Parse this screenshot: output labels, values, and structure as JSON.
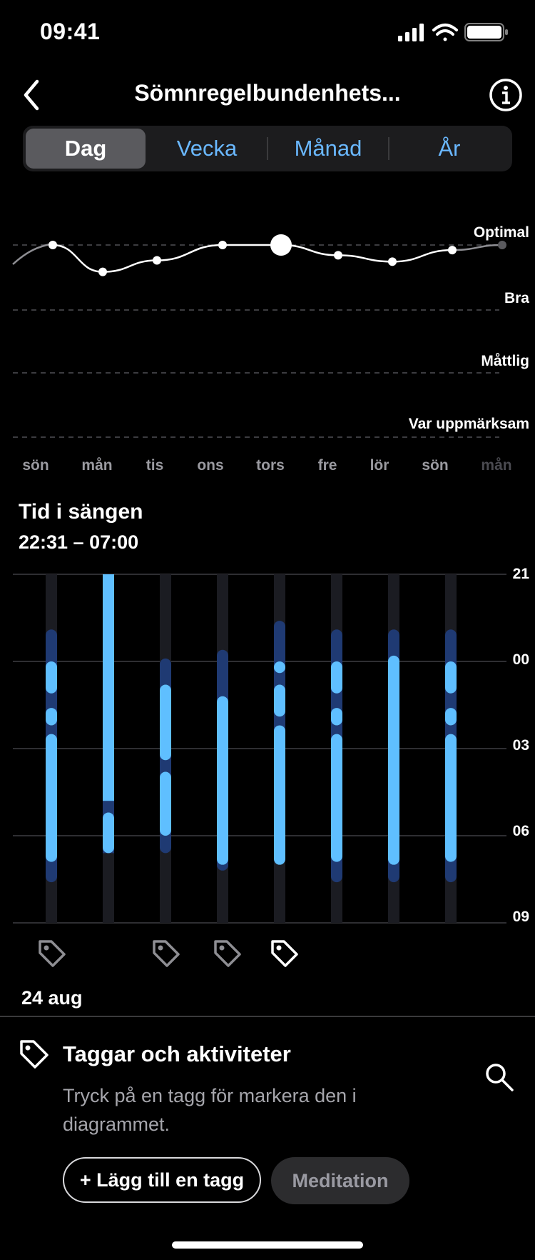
{
  "status_bar": {
    "time": "09:41",
    "icons": [
      "signal-icon",
      "wifi-icon",
      "battery-icon"
    ]
  },
  "header": {
    "title": "Sömnregelbundenhets...",
    "back_icon": "chevron-left-icon",
    "info_icon": "info-icon"
  },
  "tabs": [
    {
      "label": "Dag",
      "active": true
    },
    {
      "label": "Vecka",
      "active": false
    },
    {
      "label": "Månad",
      "active": false
    },
    {
      "label": "År",
      "active": false
    }
  ],
  "colors": {
    "accent": "#6ab8ff",
    "bar_dark": "#1f3a73",
    "bar_light": "#5fbfff",
    "bar_track": "#1b1c22",
    "background": "#000000"
  },
  "chart_data": [
    {
      "type": "line",
      "levels": [
        "Optimal",
        "Bra",
        "Måttlig",
        "Var uppmärksam"
      ],
      "x": [
        "sön",
        "mån",
        "tis",
        "ons",
        "tors",
        "fre",
        "lör",
        "sön",
        "mån"
      ],
      "faded_labels": [
        "mån"
      ],
      "series": [
        {
          "values": [
            3.0,
            2.58,
            2.76,
            3.0,
            3.0,
            2.84,
            2.74,
            2.92,
            3.0
          ]
        }
      ],
      "level_scale": {
        "Optimal": 3,
        "Bra": 2,
        "Måttlig": 1,
        "Var uppmärksam": 0
      },
      "selected_index": 4,
      "ylim": [
        0,
        3
      ],
      "grid": true
    },
    {
      "type": "bar",
      "title": "Tid i sängen",
      "subtitle": "22:31 – 07:00",
      "y_ticks": [
        "21",
        "00",
        "03",
        "06",
        "09"
      ],
      "ylim_hours_since_21": [
        0,
        12
      ],
      "categories": [
        "sön",
        "mån",
        "tis",
        "ons",
        "tors",
        "fre",
        "lör",
        "sön"
      ],
      "in_bed": [
        [
          1.9,
          10.6
        ],
        [
          0.0,
          9.6
        ],
        [
          2.9,
          9.6
        ],
        [
          2.6,
          10.2
        ],
        [
          1.6,
          9.9
        ],
        [
          1.9,
          10.6
        ],
        [
          1.9,
          10.6
        ],
        [
          1.9,
          10.6
        ]
      ],
      "asleep": [
        [
          [
            3.0,
            4.1
          ],
          [
            4.6,
            5.2
          ],
          [
            5.5,
            9.9
          ]
        ],
        [
          [
            0.0,
            7.8
          ],
          [
            8.2,
            9.6
          ]
        ],
        [
          [
            3.8,
            6.4
          ],
          [
            6.8,
            9.0
          ]
        ],
        [
          [
            4.2,
            10.0
          ]
        ],
        [
          [
            3.0,
            3.4
          ],
          [
            3.8,
            4.9
          ],
          [
            5.2,
            10.0
          ]
        ],
        [
          [
            3.0,
            4.1
          ],
          [
            4.6,
            5.2
          ],
          [
            5.5,
            9.9
          ]
        ],
        [
          [
            2.8,
            10.0
          ]
        ],
        [
          [
            3.0,
            4.1
          ],
          [
            4.6,
            5.2
          ],
          [
            5.5,
            9.9
          ]
        ]
      ],
      "tags": [
        true,
        false,
        true,
        true,
        true,
        false,
        false,
        false
      ],
      "selected_index": 4,
      "date": "24 aug"
    }
  ],
  "tags_section": {
    "title": "Taggar och aktiviteter",
    "description": "Tryck på en tagg för markera den i diagrammet.",
    "add_button": "+ Lägg till en tagg",
    "chips": [
      "Meditation"
    ],
    "icon": "tag-icon",
    "search_icon": "search-icon"
  }
}
